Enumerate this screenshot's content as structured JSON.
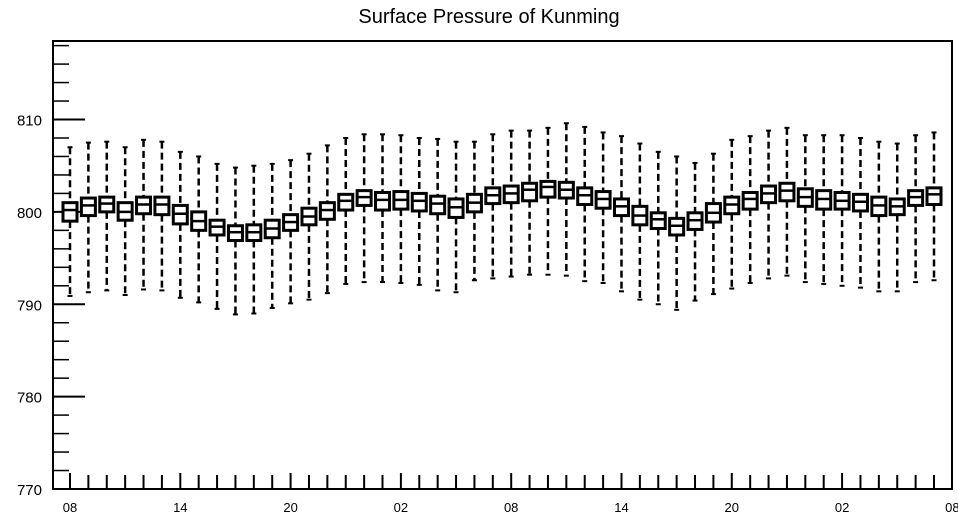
{
  "chart_data": {
    "type": "box",
    "title": "Surface Pressure of Kunming",
    "xlabel": "",
    "ylabel": "",
    "ylim": [
      770,
      818.5
    ],
    "yticks": [
      770,
      780,
      790,
      800,
      810
    ],
    "x_tick_labels": [
      "08",
      "14",
      "20",
      "02",
      "08",
      "14",
      "20",
      "02",
      "08"
    ],
    "grid": false,
    "legend": "none",
    "colors": {
      "box": "#000000",
      "whisker": "#000000",
      "background": "#ffffff"
    },
    "series": [
      {
        "whisker_low": [
          790.9,
          791.3,
          791.5,
          791.0,
          791.6,
          791.5,
          790.7,
          790.2,
          789.5,
          788.9,
          789.0,
          789.6,
          790.1,
          790.5,
          791.2,
          792.2,
          792.4,
          792.4,
          792.3,
          792.1,
          791.5,
          791.3,
          792.6,
          792.8,
          793.0,
          793.2,
          793.2,
          793.1,
          792.5,
          792.3,
          791.4,
          790.5,
          790.0,
          789.4,
          790.4,
          791.1,
          791.7,
          792.3,
          792.8,
          793.1,
          792.4,
          792.2,
          792.0,
          791.8,
          791.4,
          791.4,
          792.4,
          792.6
        ],
        "q1": [
          799.0,
          799.6,
          800.0,
          799.1,
          799.8,
          799.7,
          798.7,
          798.0,
          797.5,
          796.9,
          796.9,
          797.2,
          798.0,
          798.6,
          799.2,
          800.2,
          800.7,
          800.2,
          800.3,
          800.1,
          799.8,
          799.4,
          800.0,
          800.9,
          801.0,
          801.2,
          801.6,
          801.5,
          800.8,
          800.4,
          799.6,
          798.6,
          798.2,
          797.5,
          798.1,
          798.9,
          799.8,
          800.3,
          801.0,
          801.2,
          800.6,
          800.3,
          800.3,
          800.1,
          799.6,
          799.7,
          800.7,
          800.8
        ],
        "median": [
          800.2,
          800.7,
          800.9,
          800.0,
          800.8,
          800.8,
          799.8,
          799.0,
          798.4,
          797.8,
          797.8,
          798.2,
          798.9,
          799.5,
          800.2,
          801.2,
          801.6,
          801.3,
          801.3,
          801.2,
          800.9,
          800.5,
          801.0,
          801.8,
          802.0,
          802.4,
          802.7,
          802.4,
          801.8,
          801.4,
          800.6,
          799.6,
          799.2,
          798.5,
          799.1,
          799.9,
          800.8,
          801.4,
          802.0,
          802.3,
          801.6,
          801.4,
          801.2,
          801.1,
          800.7,
          800.6,
          801.6,
          801.9
        ],
        "q3": [
          801.0,
          801.5,
          801.6,
          801.0,
          801.6,
          801.6,
          800.7,
          800.0,
          799.1,
          798.5,
          798.6,
          799.1,
          799.7,
          800.4,
          801.0,
          801.9,
          802.3,
          802.1,
          802.2,
          802.0,
          801.7,
          801.4,
          801.9,
          802.6,
          802.8,
          803.1,
          803.3,
          803.2,
          802.6,
          802.2,
          801.4,
          800.6,
          799.9,
          799.3,
          799.9,
          800.9,
          801.6,
          802.1,
          802.8,
          803.1,
          802.5,
          802.3,
          802.1,
          801.9,
          801.6,
          801.4,
          802.3,
          802.6
        ],
        "whisker_high": [
          807.0,
          807.5,
          807.6,
          807.0,
          807.8,
          807.6,
          806.5,
          806.0,
          805.2,
          804.8,
          805.0,
          805.2,
          805.6,
          806.3,
          807.2,
          808.0,
          808.4,
          808.4,
          808.3,
          808.0,
          807.9,
          807.6,
          807.6,
          808.4,
          808.8,
          808.8,
          809.1,
          809.6,
          809.2,
          808.6,
          808.2,
          807.4,
          806.5,
          806.0,
          805.3,
          806.3,
          807.8,
          808.2,
          808.8,
          809.1,
          808.3,
          808.3,
          808.3,
          808.0,
          807.6,
          807.4,
          808.3,
          808.6
        ]
      }
    ]
  }
}
